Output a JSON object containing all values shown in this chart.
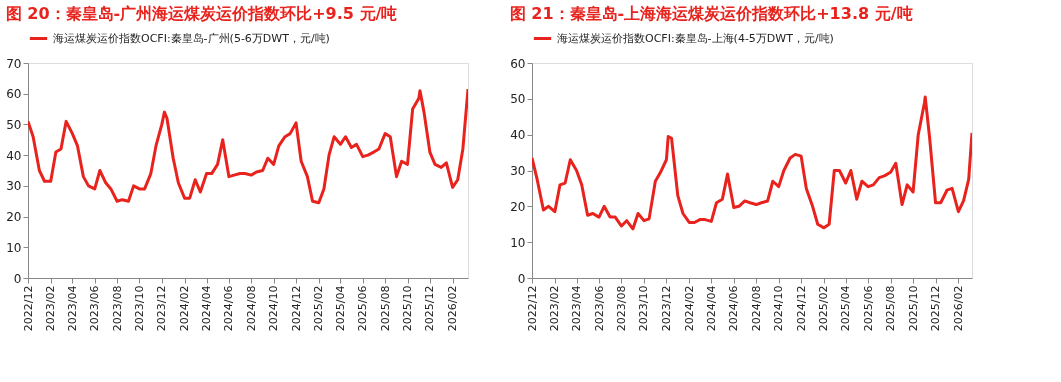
{
  "chart_data": [
    {
      "type": "line",
      "title": "图 20：秦皇岛-广州海运煤炭运价指数环比+9.5 元/吨",
      "legend": "top",
      "grid": false,
      "xlim": [
        "2022-12-01",
        "2026-03-15"
      ],
      "ylim": [
        0,
        70
      ],
      "yticks": [
        0,
        10,
        20,
        30,
        40,
        50,
        60,
        70
      ],
      "xticks": [
        {
          "value": "2022-12-01",
          "label": "2022/12"
        },
        {
          "value": "2023-02-01",
          "label": "2023/02"
        },
        {
          "value": "2023-04-01",
          "label": "2023/04"
        },
        {
          "value": "2023-06-01",
          "label": "2023/06"
        },
        {
          "value": "2023-08-01",
          "label": "2023/08"
        },
        {
          "value": "2023-10-01",
          "label": "2023/10"
        },
        {
          "value": "2023-12-01",
          "label": "2023/12"
        },
        {
          "value": "2024-02-01",
          "label": "2024/02"
        },
        {
          "value": "2024-04-01",
          "label": "2024/04"
        },
        {
          "value": "2024-06-01",
          "label": "2024/06"
        },
        {
          "value": "2024-08-01",
          "label": "2024/08"
        },
        {
          "value": "2024-10-01",
          "label": "2024/10"
        },
        {
          "value": "2024-12-01",
          "label": "2024/12"
        },
        {
          "value": "2025-02-01",
          "label": "2025/02"
        },
        {
          "value": "2025-04-01",
          "label": "2025/04"
        },
        {
          "value": "2025-06-01",
          "label": "2025/06"
        },
        {
          "value": "2025-08-01",
          "label": "2025/08"
        },
        {
          "value": "2025-10-01",
          "label": "2025/10"
        },
        {
          "value": "2025-12-01",
          "label": "2025/12"
        },
        {
          "value": "2026-02-01",
          "label": "2026/02"
        }
      ],
      "series": [
        {
          "name": "海运煤炭运价指数OCFI:秦皇岛-广州(5-6万DWT，元/吨)",
          "color": "#e8231d",
          "x": [
            "2022-12-01",
            "2022-12-15",
            "2023-01-01",
            "2023-01-15",
            "2023-02-01",
            "2023-02-15",
            "2023-03-01",
            "2023-03-15",
            "2023-04-01",
            "2023-04-15",
            "2023-05-01",
            "2023-05-15",
            "2023-06-01",
            "2023-06-15",
            "2023-07-01",
            "2023-07-15",
            "2023-08-01",
            "2023-08-15",
            "2023-09-01",
            "2023-09-15",
            "2023-10-01",
            "2023-10-15",
            "2023-11-01",
            "2023-11-15",
            "2023-12-01",
            "2023-12-08",
            "2023-12-15",
            "2024-01-01",
            "2024-01-15",
            "2024-02-01",
            "2024-02-15",
            "2024-03-01",
            "2024-03-15",
            "2024-04-01",
            "2024-04-15",
            "2024-05-01",
            "2024-05-15",
            "2024-06-01",
            "2024-06-15",
            "2024-07-01",
            "2024-07-15",
            "2024-08-01",
            "2024-08-15",
            "2024-09-01",
            "2024-09-15",
            "2024-10-01",
            "2024-10-15",
            "2024-11-01",
            "2024-11-15",
            "2024-12-01",
            "2024-12-15",
            "2025-01-01",
            "2025-01-15",
            "2025-02-01",
            "2025-02-15",
            "2025-03-01",
            "2025-03-15",
            "2025-04-01",
            "2025-04-15",
            "2025-05-01",
            "2025-05-15",
            "2025-06-01",
            "2025-06-15",
            "2025-07-01",
            "2025-07-15",
            "2025-08-01",
            "2025-08-15",
            "2025-09-01",
            "2025-09-15",
            "2025-10-01",
            "2025-10-15",
            "2025-11-01",
            "2025-11-04",
            "2025-11-15",
            "2025-12-01",
            "2025-12-15",
            "2026-01-01",
            "2026-01-15",
            "2026-02-01",
            "2026-02-15",
            "2026-03-01",
            "2026-03-15"
          ],
          "values": [
            51,
            46,
            35,
            31.5,
            31.5,
            41,
            42,
            51,
            47,
            43,
            33,
            30,
            29,
            35,
            31,
            29,
            25,
            25.5,
            25,
            30,
            29,
            29,
            34,
            43,
            50,
            54,
            52,
            39,
            31,
            26,
            26,
            32,
            28,
            34,
            34,
            37,
            45,
            33,
            33.5,
            34,
            34,
            33.5,
            34.5,
            35,
            39,
            37,
            43,
            46,
            47,
            50.5,
            38,
            33,
            25,
            24.5,
            29,
            40,
            46,
            43.5,
            46,
            42.5,
            43.5,
            39.5,
            40,
            41,
            42,
            47,
            46,
            33,
            38,
            37,
            55,
            58.5,
            61,
            54,
            41,
            37,
            36,
            37.5,
            29.5,
            32,
            42,
            61.5
          ]
        }
      ]
    },
    {
      "type": "line",
      "title": "图 21：秦皇岛-上海海运煤炭运价指数环比+13.8 元/吨",
      "legend": "top",
      "grid": false,
      "xlim": [
        "2022-12-01",
        "2026-03-10"
      ],
      "ylim": [
        0,
        60
      ],
      "yticks": [
        0,
        10,
        20,
        30,
        40,
        50,
        60
      ],
      "xticks": [
        {
          "value": "2022-12-01",
          "label": "2022/12"
        },
        {
          "value": "2023-02-01",
          "label": "2023/02"
        },
        {
          "value": "2023-04-01",
          "label": "2023/04"
        },
        {
          "value": "2023-06-01",
          "label": "2023/06"
        },
        {
          "value": "2023-08-01",
          "label": "2023/08"
        },
        {
          "value": "2023-10-01",
          "label": "2023/10"
        },
        {
          "value": "2023-12-01",
          "label": "2023/12"
        },
        {
          "value": "2024-02-01",
          "label": "2024/02"
        },
        {
          "value": "2024-04-01",
          "label": "2024/04"
        },
        {
          "value": "2024-06-01",
          "label": "2024/06"
        },
        {
          "value": "2024-08-01",
          "label": "2024/08"
        },
        {
          "value": "2024-10-01",
          "label": "2024/10"
        },
        {
          "value": "2024-12-01",
          "label": "2024/12"
        },
        {
          "value": "2025-02-01",
          "label": "2025/02"
        },
        {
          "value": "2025-04-01",
          "label": "2025/04"
        },
        {
          "value": "2025-06-01",
          "label": "2025/06"
        },
        {
          "value": "2025-08-01",
          "label": "2025/08"
        },
        {
          "value": "2025-10-01",
          "label": "2025/10"
        },
        {
          "value": "2025-12-01",
          "label": "2025/12"
        },
        {
          "value": "2026-02-01",
          "label": "2026/02"
        }
      ],
      "series": [
        {
          "name": "海运煤炭运价指数OCFI:秦皇岛-上海(4-5万DWT，元/吨)",
          "color": "#e8231d",
          "x": [
            "2022-12-01",
            "2022-12-15",
            "2023-01-01",
            "2023-01-15",
            "2023-02-01",
            "2023-02-15",
            "2023-03-01",
            "2023-03-15",
            "2023-04-01",
            "2023-04-15",
            "2023-05-01",
            "2023-05-15",
            "2023-06-01",
            "2023-06-15",
            "2023-07-01",
            "2023-07-15",
            "2023-08-01",
            "2023-08-15",
            "2023-09-01",
            "2023-09-15",
            "2023-10-01",
            "2023-10-15",
            "2023-11-01",
            "2023-11-15",
            "2023-12-01",
            "2023-12-06",
            "2023-12-15",
            "2024-01-01",
            "2024-01-15",
            "2024-02-01",
            "2024-02-15",
            "2024-03-01",
            "2024-03-15",
            "2024-04-01",
            "2024-04-15",
            "2024-05-01",
            "2024-05-15",
            "2024-06-01",
            "2024-06-15",
            "2024-07-01",
            "2024-07-15",
            "2024-08-01",
            "2024-08-15",
            "2024-09-01",
            "2024-09-15",
            "2024-10-01",
            "2024-10-15",
            "2024-11-01",
            "2024-11-15",
            "2024-12-01",
            "2024-12-15",
            "2025-01-01",
            "2025-01-15",
            "2025-02-01",
            "2025-02-15",
            "2025-03-01",
            "2025-03-15",
            "2025-04-01",
            "2025-04-15",
            "2025-05-01",
            "2025-05-15",
            "2025-06-01",
            "2025-06-15",
            "2025-07-01",
            "2025-07-15",
            "2025-08-01",
            "2025-08-15",
            "2025-09-01",
            "2025-09-15",
            "2025-10-01",
            "2025-10-15",
            "2025-11-01",
            "2025-11-03",
            "2025-11-15",
            "2025-12-01",
            "2025-12-15",
            "2026-01-01",
            "2026-01-15",
            "2026-02-01",
            "2026-02-15",
            "2026-03-01",
            "2026-03-10"
          ],
          "values": [
            33.5,
            27.5,
            19,
            20,
            18.5,
            26,
            26.5,
            33,
            30,
            26,
            17.5,
            18,
            17,
            20,
            17,
            17,
            14.5,
            16,
            13.7,
            18,
            16,
            16.5,
            27,
            29.5,
            33,
            39.5,
            39,
            23,
            18,
            15.5,
            15.5,
            16.3,
            16.3,
            15.8,
            21,
            22,
            29,
            19.7,
            20,
            21.5,
            21,
            20.5,
            21,
            21.5,
            27,
            25.5,
            30,
            33.5,
            34.5,
            34,
            25,
            20,
            15,
            14,
            15,
            30,
            30,
            26.5,
            30,
            22,
            27,
            25.5,
            26,
            28,
            28.5,
            29.5,
            32,
            20.5,
            26,
            24,
            40,
            49,
            50.5,
            39,
            21,
            21,
            24.5,
            25,
            18.5,
            21.5,
            27.5,
            40.5
          ]
        }
      ]
    }
  ]
}
